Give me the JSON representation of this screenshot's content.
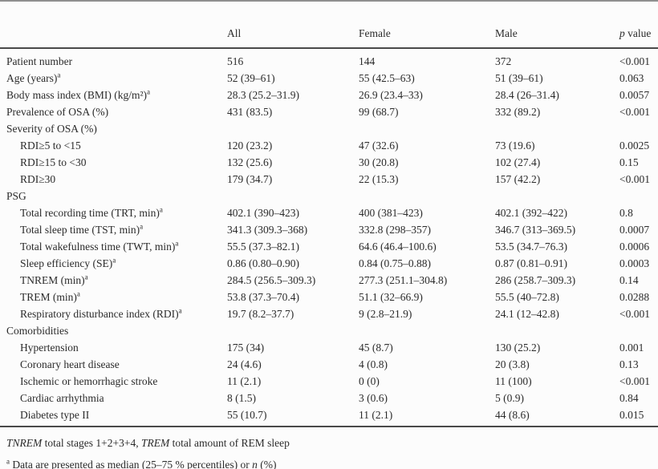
{
  "table": {
    "columns": [
      "All",
      "Female",
      "Male"
    ],
    "p_header": {
      "italic": "p",
      "rest": " value"
    },
    "rows": [
      {
        "label": "Patient number",
        "indent": false,
        "section": false,
        "values": [
          "516",
          "144",
          "372",
          "<0.001"
        ]
      },
      {
        "label": "Age (years)",
        "sup": "a",
        "indent": false,
        "section": false,
        "values": [
          "52 (39–61)",
          "55 (42.5–63)",
          "51 (39–61)",
          "0.063"
        ]
      },
      {
        "label": "Body mass index (BMI) (kg/m²)",
        "sup": "a",
        "indent": false,
        "section": false,
        "values": [
          "28.3 (25.2–31.9)",
          "26.9 (23.4–33)",
          "28.4 (26–31.4)",
          "0.0057"
        ]
      },
      {
        "label": "Prevalence of OSA (%)",
        "indent": false,
        "section": false,
        "values": [
          "431 (83.5)",
          "99 (68.7)",
          "332 (89.2)",
          "<0.001"
        ]
      },
      {
        "label": "Severity of OSA (%)",
        "indent": false,
        "section": true,
        "values": [
          "",
          "",
          "",
          ""
        ]
      },
      {
        "label": "RDI≥5 to <15",
        "indent": true,
        "section": false,
        "values": [
          "120 (23.2)",
          "47 (32.6)",
          "73 (19.6)",
          "0.0025"
        ]
      },
      {
        "label": "RDI≥15 to <30",
        "indent": true,
        "section": false,
        "values": [
          "132 (25.6)",
          "30 (20.8)",
          "102 (27.4)",
          "0.15"
        ]
      },
      {
        "label": "RDI≥30",
        "indent": true,
        "section": false,
        "values": [
          "179 (34.7)",
          "22 (15.3)",
          "157 (42.2)",
          "<0.001"
        ]
      },
      {
        "label": "PSG",
        "indent": false,
        "section": true,
        "values": [
          "",
          "",
          "",
          ""
        ]
      },
      {
        "label": "Total recording time (TRT, min)",
        "sup": "a",
        "indent": true,
        "section": false,
        "values": [
          "402.1 (390–423)",
          "400 (381–423)",
          "402.1 (392–422)",
          "0.8"
        ]
      },
      {
        "label": "Total sleep time (TST, min)",
        "sup": "a",
        "indent": true,
        "section": false,
        "values": [
          "341.3 (309.3–368)",
          "332.8 (298–357)",
          "346.7 (313–369.5)",
          "0.0007"
        ]
      },
      {
        "label": "Total wakefulness time (TWT, min)",
        "sup": "a",
        "indent": true,
        "section": false,
        "values": [
          "55.5 (37.3–82.1)",
          "64.6 (46.4–100.6)",
          "53.5 (34.7–76.3)",
          "0.0006"
        ]
      },
      {
        "label": "Sleep efficiency (SE)",
        "sup": "a",
        "indent": true,
        "section": false,
        "values": [
          "0.86 (0.80–0.90)",
          "0.84 (0.75–0.88)",
          "0.87 (0.81–0.91)",
          "0.0003"
        ]
      },
      {
        "label": "TNREM (min)",
        "sup": "a",
        "indent": true,
        "section": false,
        "values": [
          "284.5 (256.5–309.3)",
          "277.3 (251.1–304.8)",
          "286 (258.7–309.3)",
          "0.14"
        ]
      },
      {
        "label": "TREM (min)",
        "sup": "a",
        "indent": true,
        "section": false,
        "values": [
          "53.8 (37.3–70.4)",
          "51.1 (32–66.9)",
          "55.5 (40–72.8)",
          "0.0288"
        ]
      },
      {
        "label": "Respiratory disturbance index (RDI)",
        "sup": "a",
        "indent": true,
        "section": false,
        "values": [
          "19.7 (8.2–37.7)",
          "9 (2.8–21.9)",
          "24.1 (12–42.8)",
          "<0.001"
        ]
      },
      {
        "label": "Comorbidities",
        "indent": false,
        "section": true,
        "values": [
          "",
          "",
          "",
          ""
        ]
      },
      {
        "label": "Hypertension",
        "indent": true,
        "section": false,
        "values": [
          "175 (34)",
          "45 (8.7)",
          "130 (25.2)",
          "0.001"
        ]
      },
      {
        "label": "Coronary heart disease",
        "indent": true,
        "section": false,
        "values": [
          "24 (4.6)",
          "4 (0.8)",
          "20 (3.8)",
          "0.13"
        ]
      },
      {
        "label": "Ischemic or hemorrhagic stroke",
        "indent": true,
        "section": false,
        "values": [
          "11 (2.1)",
          "0 (0)",
          "11 (100)",
          "<0.001"
        ]
      },
      {
        "label": "Cardiac arrhythmia",
        "indent": true,
        "section": false,
        "values": [
          "8 (1.5)",
          "3 (0.6)",
          "5 (0.9)",
          "0.84"
        ]
      },
      {
        "label": "Diabetes type II",
        "indent": true,
        "section": false,
        "values": [
          "55 (10.7)",
          "11 (2.1)",
          "44 (8.6)",
          "0.015"
        ]
      }
    ]
  },
  "footnotes": [
    {
      "segments": [
        {
          "text": "TNREM",
          "italic": true
        },
        {
          "text": " total stages 1+2+3+4, ",
          "italic": false
        },
        {
          "text": "TREM",
          "italic": true
        },
        {
          "text": " total amount of REM sleep",
          "italic": false
        }
      ]
    },
    {
      "sup": "a",
      "segments": [
        {
          "text": " Data are presented as median (25–75 % percentiles) or ",
          "italic": false
        },
        {
          "text": "n",
          "italic": true
        },
        {
          "text": " (%)",
          "italic": false
        }
      ]
    }
  ]
}
